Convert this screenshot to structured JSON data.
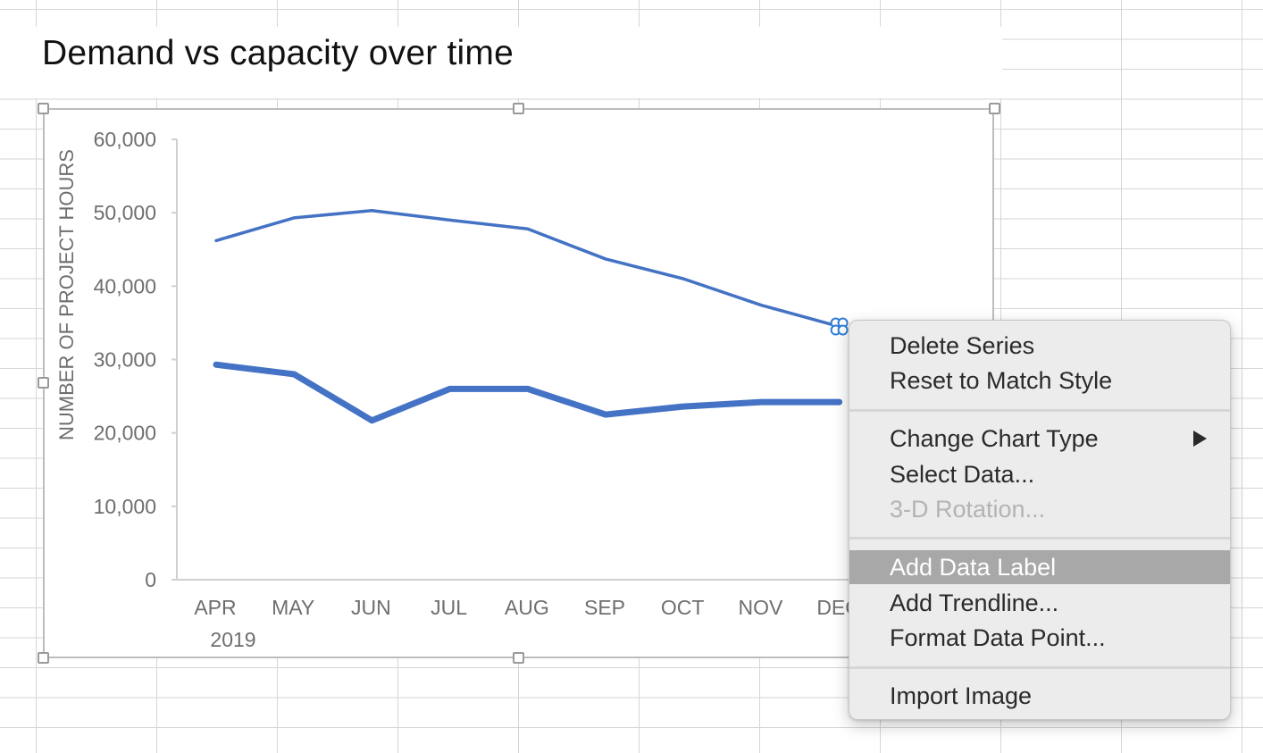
{
  "sheet": {
    "title": "Demand vs capacity over time"
  },
  "chart_data": {
    "type": "line",
    "title": "Demand vs capacity over time",
    "ylabel": "NUMBER OF PROJECT HOURS",
    "xlabel": "",
    "categories": [
      "APR",
      "MAY",
      "JUN",
      "JUL",
      "AUG",
      "SEP",
      "OCT",
      "NOV",
      "DEC"
    ],
    "category_sublabels": [
      "2019",
      "",
      "",
      "",
      "",
      "",
      "",
      "",
      ""
    ],
    "ylim": [
      0,
      60000
    ],
    "yticks": [
      0,
      10000,
      20000,
      30000,
      40000,
      50000,
      60000
    ],
    "ytick_labels": [
      "0",
      "10,000",
      "20,000",
      "30,000",
      "40,000",
      "50,000",
      "60,000"
    ],
    "series": [
      {
        "values": [
          46200,
          49300,
          50300,
          49000,
          47800,
          43700,
          41000,
          37400,
          34500
        ],
        "color": "#4472c4",
        "weight": "thin"
      },
      {
        "values": [
          29300,
          28000,
          21700,
          26000,
          26000,
          22500,
          23600,
          24200,
          24200
        ],
        "color": "#4472c4",
        "weight": "thick"
      }
    ],
    "selected_point": {
      "series": 0,
      "index": 8
    },
    "grid": false,
    "legend": "none"
  },
  "context_menu": {
    "groups": [
      [
        {
          "label": "Delete Series",
          "enabled": true
        },
        {
          "label": "Reset to Match Style",
          "enabled": true
        }
      ],
      [
        {
          "label": "Change Chart Type",
          "enabled": true,
          "submenu": true
        },
        {
          "label": "Select Data...",
          "enabled": true
        },
        {
          "label": "3-D Rotation...",
          "enabled": false
        }
      ],
      [
        {
          "label": "Add Data Label",
          "enabled": true,
          "highlighted": true
        },
        {
          "label": "Add Trendline...",
          "enabled": true
        },
        {
          "label": "Format Data Point...",
          "enabled": true
        }
      ],
      [
        {
          "label": "Import Image",
          "enabled": true
        }
      ]
    ]
  }
}
